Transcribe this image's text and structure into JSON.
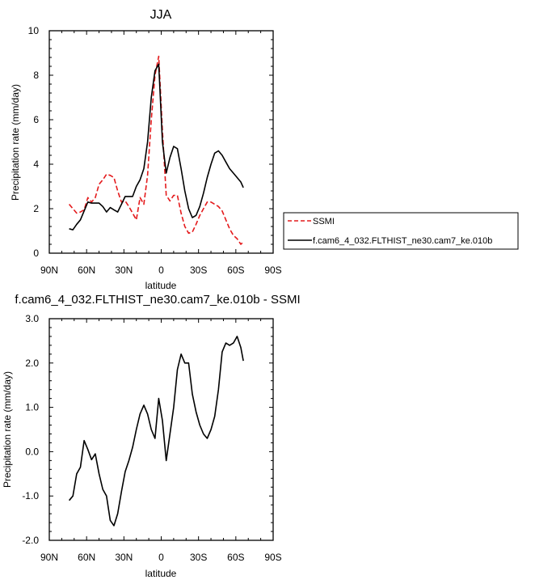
{
  "chart_data": [
    {
      "type": "line",
      "title": "JJA",
      "xlabel": "latitude",
      "ylabel": "Precipitation rate (mm/day)",
      "xlim": [
        90,
        -90
      ],
      "ylim": [
        0,
        10
      ],
      "x_ticks": [
        90,
        60,
        30,
        0,
        -30,
        -60,
        -90
      ],
      "x_tick_labels": [
        "90N",
        "60N",
        "30N",
        "0",
        "30S",
        "60S",
        "90S"
      ],
      "y_ticks": [
        0,
        2,
        4,
        6,
        8,
        10
      ],
      "y_tick_labels": [
        "0",
        "2",
        "4",
        "6",
        "8",
        "10"
      ],
      "grid": false,
      "legend_placement": "right",
      "series": [
        {
          "name": "SSMI",
          "color": "#e41a1c",
          "dash": "dashed",
          "x": [
            74,
            71,
            68,
            65,
            62,
            59,
            56,
            53,
            50,
            47,
            44,
            41,
            38,
            35,
            32,
            29,
            26,
            23,
            20,
            17,
            14,
            11,
            8,
            5,
            2,
            -1,
            -4,
            -7,
            -10,
            -13,
            -16,
            -19,
            -22,
            -25,
            -28,
            -31,
            -34,
            -37,
            -40,
            -43,
            -46,
            -49,
            -52,
            -55,
            -58,
            -61,
            -64,
            -66
          ],
          "y": [
            2.2,
            2.0,
            1.8,
            1.85,
            1.95,
            2.5,
            2.3,
            2.5,
            3.1,
            3.3,
            3.55,
            3.5,
            3.4,
            2.8,
            2.3,
            2.35,
            2.1,
            1.8,
            1.5,
            2.5,
            2.2,
            3.5,
            6.0,
            8.0,
            8.85,
            5.5,
            2.6,
            2.35,
            2.6,
            2.6,
            1.8,
            1.2,
            0.9,
            0.95,
            1.3,
            1.7,
            2.0,
            2.3,
            2.3,
            2.2,
            2.1,
            1.9,
            1.5,
            1.1,
            0.8,
            0.65,
            0.4,
            0.5
          ]
        },
        {
          "name": "f.cam6_4_032.FLTHIST_ne30.cam7_ke.010b",
          "color": "#000000",
          "dash": "solid",
          "x": [
            74,
            71,
            68,
            65,
            62,
            59,
            56,
            53,
            50,
            47,
            44,
            41,
            38,
            35,
            32,
            29,
            26,
            23,
            20,
            17,
            14,
            11,
            8,
            5,
            2,
            -1,
            -4,
            -7,
            -10,
            -13,
            -16,
            -19,
            -22,
            -25,
            -28,
            -31,
            -34,
            -37,
            -40,
            -43,
            -46,
            -49,
            -52,
            -55,
            -58,
            -61,
            -64,
            -66
          ],
          "y": [
            1.1,
            1.05,
            1.3,
            1.5,
            1.9,
            2.3,
            2.25,
            2.25,
            2.25,
            2.1,
            1.85,
            2.05,
            1.95,
            1.85,
            2.2,
            2.55,
            2.55,
            2.55,
            3.0,
            3.3,
            3.8,
            5.0,
            7.0,
            8.2,
            8.5,
            5.0,
            3.6,
            4.3,
            4.8,
            4.7,
            3.8,
            2.8,
            2.0,
            1.6,
            1.7,
            2.1,
            2.7,
            3.4,
            4.0,
            4.5,
            4.6,
            4.4,
            4.1,
            3.8,
            3.6,
            3.4,
            3.2,
            2.95
          ]
        }
      ]
    },
    {
      "type": "line",
      "title": "f.cam6_4_032.FLTHIST_ne30.cam7_ke.010b - SSMI",
      "xlabel": "latitude",
      "ylabel": "Precipitation rate (mm/day)",
      "xlim": [
        90,
        -90
      ],
      "ylim": [
        -2,
        3
      ],
      "x_ticks": [
        90,
        60,
        30,
        0,
        -30,
        -60,
        -90
      ],
      "x_tick_labels": [
        "90N",
        "60N",
        "30N",
        "0",
        "30S",
        "60S",
        "90S"
      ],
      "y_ticks": [
        -2,
        -1,
        0,
        1,
        2,
        3
      ],
      "y_tick_labels": [
        "-2.0",
        "-1.0",
        "0.0",
        "1.0",
        "2.0",
        "3.0"
      ],
      "grid": false,
      "series": [
        {
          "color": "#000000",
          "dash": "solid",
          "x": [
            74,
            71,
            68,
            65,
            62,
            59,
            56,
            53,
            50,
            47,
            44,
            41,
            38,
            35,
            32,
            29,
            26,
            23,
            20,
            17,
            14,
            11,
            8,
            5,
            2,
            -1,
            -4,
            -7,
            -10,
            -13,
            -16,
            -19,
            -22,
            -25,
            -28,
            -31,
            -34,
            -37,
            -40,
            -43,
            -46,
            -49,
            -52,
            -55,
            -58,
            -61,
            -64,
            -66
          ],
          "y": [
            -1.1,
            -1.0,
            -0.5,
            -0.35,
            0.25,
            0.05,
            -0.18,
            -0.05,
            -0.5,
            -0.85,
            -1.0,
            -1.55,
            -1.67,
            -1.4,
            -0.9,
            -0.45,
            -0.2,
            0.1,
            0.5,
            0.85,
            1.05,
            0.85,
            0.5,
            0.3,
            1.2,
            0.7,
            -0.2,
            0.4,
            1.0,
            1.85,
            2.2,
            2.0,
            2.0,
            1.3,
            0.9,
            0.6,
            0.4,
            0.3,
            0.5,
            0.8,
            1.4,
            2.25,
            2.45,
            2.4,
            2.45,
            2.6,
            2.35,
            2.05
          ]
        }
      ]
    }
  ]
}
